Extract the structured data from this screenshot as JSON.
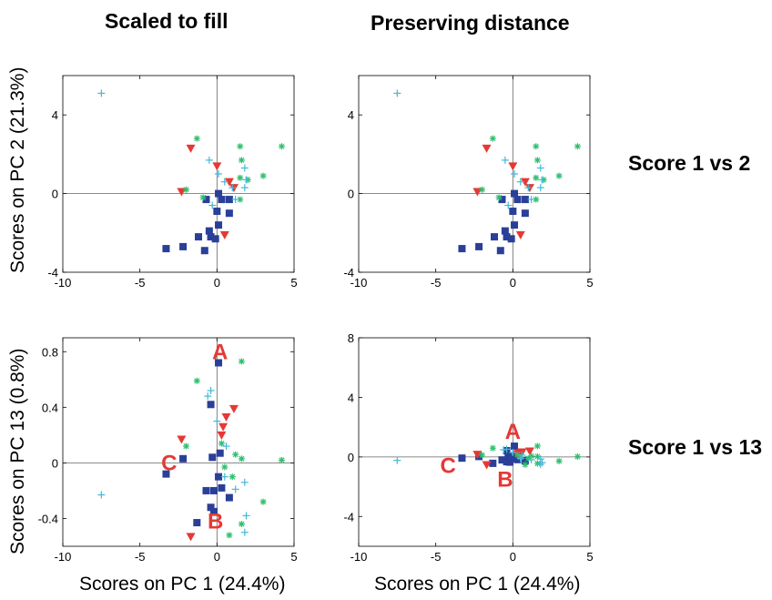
{
  "column_titles": {
    "left": "Scaled to fill",
    "right": "Preserving distance"
  },
  "row_labels": {
    "top": "Score 1 vs 2",
    "bottom": "Score 1 vs 13"
  },
  "axis_labels": {
    "y_top": "Scores on PC 2 (21.3%)",
    "y_bottom": "Scores on PC 13 (0.8%)",
    "x_left": "Scores on PC 1 (24.4%)",
    "x_right": "Scores on PC 1 (24.4%)"
  },
  "colors": {
    "square": "#2a3f98",
    "triangle": "#e53935",
    "star": "#2fbf6f",
    "plus": "#42b8d8",
    "annotation": "#e53935"
  },
  "chart_data": [
    {
      "type": "scatter",
      "panel": "top-left",
      "xlim": [
        -10,
        5
      ],
      "ylim": [
        -4,
        6
      ],
      "xticks": [
        -10,
        -5,
        0,
        5
      ],
      "yticks": [
        -4,
        0,
        4
      ],
      "grid": false,
      "zero_lines": true,
      "series": [
        {
          "marker": "square",
          "points": [
            [
              -3.3,
              -2.8
            ],
            [
              -2.2,
              -2.7
            ],
            [
              -1.2,
              -2.2
            ],
            [
              -0.8,
              -2.9
            ],
            [
              -0.5,
              -1.9
            ],
            [
              -0.4,
              -2.2
            ],
            [
              -0.1,
              -2.3
            ],
            [
              0.1,
              -1.6
            ],
            [
              0.8,
              -1.0
            ],
            [
              0.0,
              -0.9
            ],
            [
              -0.7,
              -0.3
            ],
            [
              0.3,
              -0.3
            ],
            [
              0.8,
              -0.3
            ],
            [
              0.1,
              0.0
            ]
          ]
        },
        {
          "marker": "triangle",
          "points": [
            [
              -1.7,
              2.3
            ],
            [
              -2.3,
              0.1
            ],
            [
              0.0,
              1.4
            ],
            [
              0.8,
              0.6
            ],
            [
              1.1,
              0.3
            ],
            [
              0.5,
              -2.1
            ]
          ]
        },
        {
          "marker": "star",
          "points": [
            [
              -1.3,
              2.8
            ],
            [
              -2.0,
              0.2
            ],
            [
              1.5,
              2.4
            ],
            [
              1.6,
              1.7
            ],
            [
              4.2,
              2.4
            ],
            [
              1.5,
              0.8
            ],
            [
              2.0,
              0.7
            ],
            [
              3.0,
              0.9
            ],
            [
              1.5,
              -0.3
            ],
            [
              -0.9,
              -0.2
            ]
          ]
        },
        {
          "marker": "plus",
          "points": [
            [
              -7.5,
              5.1
            ],
            [
              -0.5,
              1.7
            ],
            [
              0.1,
              1.0
            ],
            [
              0.5,
              0.6
            ],
            [
              1.0,
              0.3
            ],
            [
              1.8,
              1.3
            ],
            [
              1.9,
              0.7
            ],
            [
              1.8,
              0.3
            ],
            [
              1.2,
              -0.3
            ],
            [
              -0.3,
              -0.6
            ]
          ]
        }
      ]
    },
    {
      "type": "scatter",
      "panel": "top-right",
      "xlim": [
        -10,
        5
      ],
      "ylim": [
        -4,
        6
      ],
      "xticks": [
        -10,
        -5,
        0,
        5
      ],
      "yticks": [
        -4,
        0,
        4
      ],
      "grid": false,
      "zero_lines": true,
      "series": [
        {
          "marker": "square",
          "points": [
            [
              -3.3,
              -2.8
            ],
            [
              -2.2,
              -2.7
            ],
            [
              -1.2,
              -2.2
            ],
            [
              -0.8,
              -2.9
            ],
            [
              -0.5,
              -1.9
            ],
            [
              -0.4,
              -2.2
            ],
            [
              -0.1,
              -2.3
            ],
            [
              0.1,
              -1.6
            ],
            [
              0.8,
              -1.0
            ],
            [
              0.0,
              -0.9
            ],
            [
              -0.7,
              -0.3
            ],
            [
              0.3,
              -0.3
            ],
            [
              0.8,
              -0.3
            ],
            [
              0.1,
              0.0
            ]
          ]
        },
        {
          "marker": "triangle",
          "points": [
            [
              -1.7,
              2.3
            ],
            [
              -2.3,
              0.1
            ],
            [
              0.0,
              1.4
            ],
            [
              0.8,
              0.6
            ],
            [
              1.1,
              0.3
            ],
            [
              0.5,
              -2.1
            ]
          ]
        },
        {
          "marker": "star",
          "points": [
            [
              -1.3,
              2.8
            ],
            [
              -2.0,
              0.2
            ],
            [
              1.5,
              2.4
            ],
            [
              1.6,
              1.7
            ],
            [
              4.2,
              2.4
            ],
            [
              1.5,
              0.8
            ],
            [
              2.0,
              0.7
            ],
            [
              3.0,
              0.9
            ],
            [
              1.5,
              -0.3
            ],
            [
              -0.9,
              -0.2
            ]
          ]
        },
        {
          "marker": "plus",
          "points": [
            [
              -7.5,
              5.1
            ],
            [
              -0.5,
              1.7
            ],
            [
              0.1,
              1.0
            ],
            [
              0.5,
              0.6
            ],
            [
              1.0,
              0.3
            ],
            [
              1.8,
              1.3
            ],
            [
              1.9,
              0.7
            ],
            [
              1.8,
              0.3
            ],
            [
              1.2,
              -0.3
            ],
            [
              -0.3,
              -0.6
            ]
          ]
        }
      ]
    },
    {
      "type": "scatter",
      "panel": "bottom-left",
      "xlim": [
        -10,
        5
      ],
      "ylim": [
        -0.6,
        0.9
      ],
      "xticks": [
        -10,
        -5,
        0,
        5
      ],
      "yticks": [
        -0.4,
        0,
        0.4,
        0.8
      ],
      "grid": false,
      "zero_lines": true,
      "series": [
        {
          "marker": "square",
          "points": [
            [
              0.1,
              0.72
            ],
            [
              -0.4,
              0.42
            ],
            [
              -0.3,
              0.04
            ],
            [
              0.2,
              0.07
            ],
            [
              0.1,
              -0.1
            ],
            [
              -0.7,
              -0.2
            ],
            [
              -0.2,
              -0.2
            ],
            [
              0.3,
              -0.18
            ],
            [
              0.8,
              -0.25
            ],
            [
              -0.4,
              -0.32
            ],
            [
              -0.2,
              -0.35
            ],
            [
              -1.3,
              -0.43
            ],
            [
              -3.3,
              -0.08
            ],
            [
              -2.2,
              0.03
            ]
          ]
        },
        {
          "marker": "triangle",
          "points": [
            [
              1.1,
              0.39
            ],
            [
              0.6,
              0.33
            ],
            [
              0.4,
              0.26
            ],
            [
              0.3,
              0.2
            ],
            [
              -2.3,
              0.17
            ],
            [
              -1.7,
              -0.53
            ]
          ]
        },
        {
          "marker": "star",
          "points": [
            [
              -1.3,
              0.59
            ],
            [
              1.6,
              0.73
            ],
            [
              0.3,
              0.14
            ],
            [
              -2.0,
              0.12
            ],
            [
              1.2,
              0.06
            ],
            [
              1.6,
              0.03
            ],
            [
              4.2,
              0.02
            ],
            [
              1.0,
              -0.1
            ],
            [
              0.5,
              -0.03
            ],
            [
              3.0,
              -0.28
            ],
            [
              1.6,
              -0.44
            ],
            [
              0.8,
              -0.52
            ]
          ]
        },
        {
          "marker": "plus",
          "points": [
            [
              -0.4,
              0.52
            ],
            [
              -0.6,
              0.48
            ],
            [
              0.0,
              0.3
            ],
            [
              0.6,
              0.12
            ],
            [
              0.5,
              -0.1
            ],
            [
              1.8,
              -0.14
            ],
            [
              1.9,
              -0.38
            ],
            [
              1.8,
              -0.5
            ],
            [
              -7.5,
              -0.23
            ],
            [
              1.2,
              -0.19
            ]
          ]
        }
      ],
      "annotations": [
        {
          "text": "A",
          "x": 0.2,
          "y": 0.8
        },
        {
          "text": "B",
          "x": -0.1,
          "y": -0.42
        },
        {
          "text": "C",
          "x": -3.1,
          "y": 0.0
        }
      ]
    },
    {
      "type": "scatter",
      "panel": "bottom-right",
      "xlim": [
        -10,
        5
      ],
      "ylim": [
        -6,
        8
      ],
      "xticks": [
        -10,
        -5,
        0,
        5
      ],
      "yticks": [
        -4,
        0,
        4,
        8
      ],
      "grid": false,
      "zero_lines": true,
      "series": [
        {
          "marker": "square",
          "points": [
            [
              0.1,
              0.72
            ],
            [
              -0.4,
              0.42
            ],
            [
              -0.3,
              0.04
            ],
            [
              0.2,
              0.07
            ],
            [
              0.1,
              -0.1
            ],
            [
              -0.7,
              -0.2
            ],
            [
              -0.2,
              -0.2
            ],
            [
              0.3,
              -0.18
            ],
            [
              0.8,
              -0.25
            ],
            [
              -0.4,
              -0.32
            ],
            [
              -0.2,
              -0.35
            ],
            [
              -1.3,
              -0.43
            ],
            [
              -3.3,
              -0.08
            ],
            [
              -2.2,
              0.03
            ]
          ]
        },
        {
          "marker": "triangle",
          "points": [
            [
              1.1,
              0.39
            ],
            [
              0.6,
              0.33
            ],
            [
              0.4,
              0.26
            ],
            [
              0.3,
              0.2
            ],
            [
              -2.3,
              0.17
            ],
            [
              -1.7,
              -0.53
            ]
          ]
        },
        {
          "marker": "star",
          "points": [
            [
              -1.3,
              0.59
            ],
            [
              1.6,
              0.73
            ],
            [
              0.3,
              0.14
            ],
            [
              -2.0,
              0.12
            ],
            [
              1.2,
              0.06
            ],
            [
              1.6,
              0.03
            ],
            [
              4.2,
              0.02
            ],
            [
              1.0,
              -0.1
            ],
            [
              0.5,
              -0.03
            ],
            [
              3.0,
              -0.28
            ],
            [
              1.6,
              -0.44
            ],
            [
              0.8,
              -0.52
            ]
          ]
        },
        {
          "marker": "plus",
          "points": [
            [
              -0.4,
              0.52
            ],
            [
              -0.6,
              0.48
            ],
            [
              0.0,
              0.3
            ],
            [
              0.6,
              0.12
            ],
            [
              0.5,
              -0.1
            ],
            [
              1.8,
              -0.14
            ],
            [
              1.9,
              -0.38
            ],
            [
              1.8,
              -0.5
            ],
            [
              -7.5,
              -0.23
            ],
            [
              1.2,
              -0.19
            ]
          ]
        }
      ],
      "annotations": [
        {
          "text": "A",
          "x": 0.0,
          "y": 1.7
        },
        {
          "text": "B",
          "x": -0.5,
          "y": -1.5
        },
        {
          "text": "C",
          "x": -4.2,
          "y": -0.6
        }
      ]
    }
  ]
}
